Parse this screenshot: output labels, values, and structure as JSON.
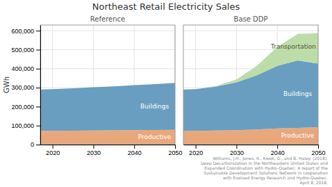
{
  "chart_data": [
    {
      "type": "area",
      "title": "Northeast Retail Electricity Sales",
      "subtitle": "Reference",
      "ylabel": "GWh",
      "stacked": true,
      "grid": true,
      "x": [
        2017,
        2020,
        2025,
        2030,
        2035,
        2040,
        2045,
        2050
      ],
      "series": [
        {
          "name": "Productive",
          "color": "#E8A87C",
          "values": [
            72000,
            72000,
            73000,
            74000,
            75000,
            76000,
            77000,
            78000
          ]
        },
        {
          "name": "Buildings",
          "color": "#6A9EC0",
          "values": [
            218000,
            220000,
            224000,
            228000,
            232000,
            237000,
            242000,
            247000
          ]
        }
      ],
      "xlim": [
        2017,
        2050
      ],
      "xticks": [
        2020,
        2030,
        2040,
        2050
      ],
      "ylim": [
        0,
        630000
      ],
      "yticks": [
        0,
        {
          "value": 100000,
          "label": "100,000"
        },
        {
          "value": 200000,
          "label": "200,000"
        },
        {
          "value": 300000,
          "label": "300,000"
        },
        {
          "value": 400000,
          "label": "400,000"
        },
        {
          "value": 500000,
          "label": "500,000"
        },
        {
          "value": 600000,
          "label": "600,000"
        }
      ]
    },
    {
      "type": "area",
      "subtitle": "Base DDP",
      "stacked": true,
      "grid": true,
      "tick_labels": "x",
      "x": [
        2017,
        2020,
        2025,
        2030,
        2035,
        2040,
        2045,
        2050
      ],
      "series": [
        {
          "name": "Productive",
          "color": "#E8A87C",
          "values": [
            72000,
            72000,
            74000,
            76000,
            80000,
            85000,
            88000,
            92000
          ]
        },
        {
          "name": "Buildings",
          "color": "#6A9EC0",
          "values": [
            218000,
            220000,
            232000,
            252000,
            285000,
            330000,
            355000,
            335000
          ]
        },
        {
          "name": "Transportation",
          "color": "#BCDDA8",
          "values": [
            0,
            0,
            3000,
            15000,
            50000,
            100000,
            140000,
            160000
          ]
        }
      ],
      "xlim": [
        2017,
        2050
      ],
      "xticks": [
        2020,
        2030,
        2040,
        2050
      ],
      "ylim": [
        0,
        630000
      ],
      "yticks": [
        0,
        100000,
        200000,
        300000,
        400000,
        500000,
        600000
      ],
      "annotations": [
        "Williams, J.H., Jones, R., Kwok, G., and B. Haley. (2018).\nDeep Decarbonization in the Northeastern United States and\nExpanded Coordination with Hydro-Quebec: A report of the\nSustainable Development Solutions Network in cooperation\nwith Evolved Energy Research and Hydro-Quebec.\nApril 8, 2018."
      ]
    }
  ]
}
